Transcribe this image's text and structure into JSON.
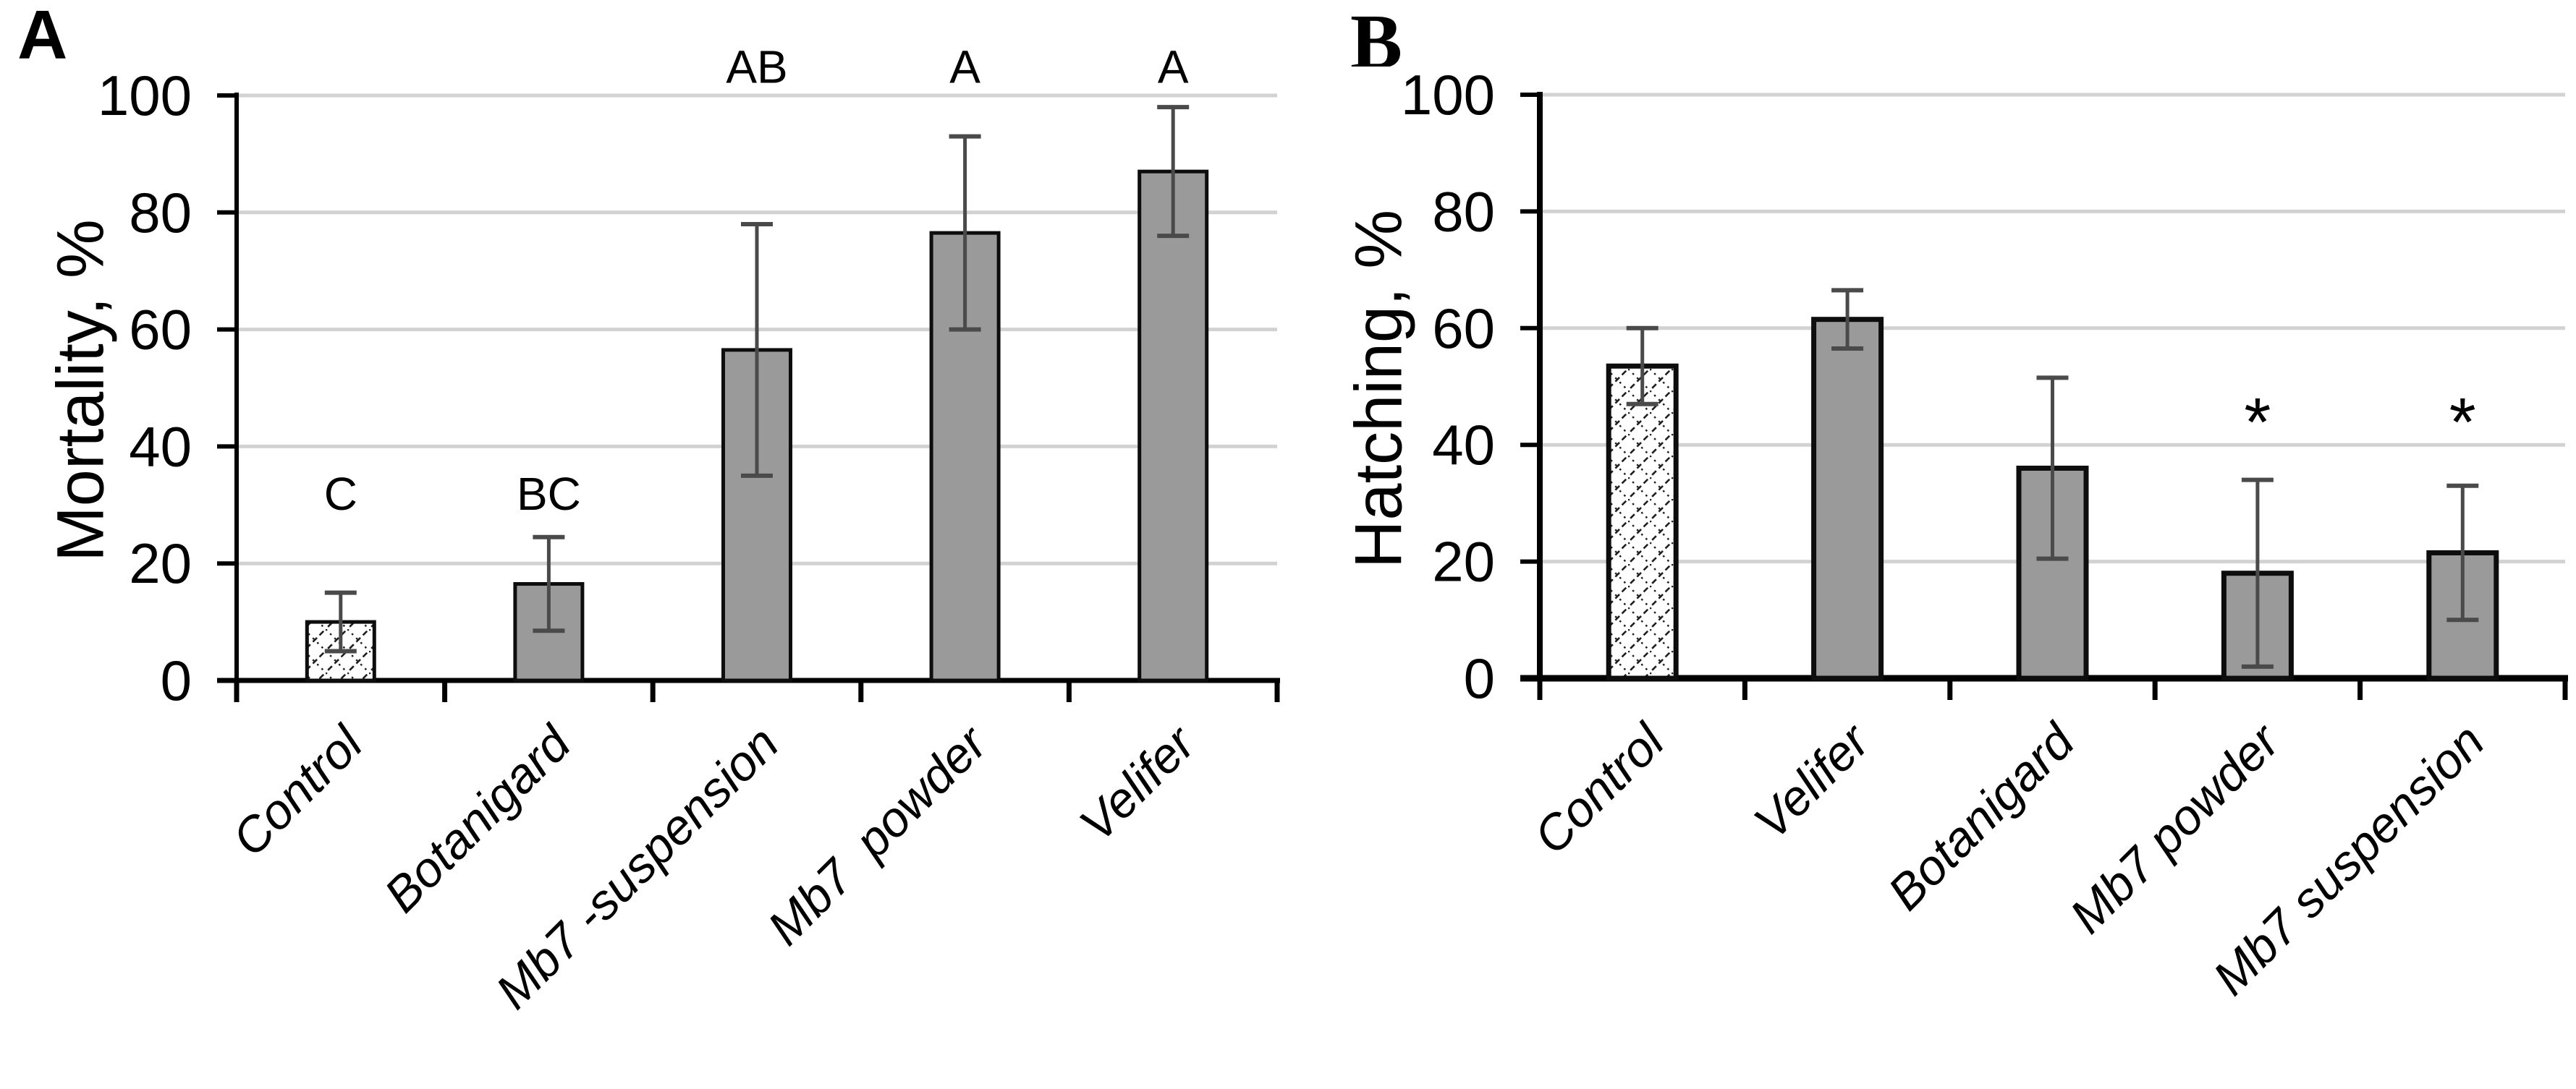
{
  "figure": {
    "background": "#ffffff",
    "panels": [
      {
        "label": "A",
        "ylabel": "Mortality, %"
      },
      {
        "label": "B",
        "ylabel": "Hatching, %"
      }
    ]
  },
  "colors": {
    "bar_fill": "#9a9a9a",
    "bar_border": "#0d0d0d",
    "error_bar": "#4a4a4a",
    "gridline": "#d2d2d2",
    "axis": "#000000",
    "text": "#000000",
    "hatch_background": "#ffffff",
    "hatch_line": "#1f1f1f"
  },
  "chart_data": [
    {
      "type": "bar",
      "panel_label": "A",
      "title": "",
      "xlabel": "",
      "ylabel": "Mortality, %",
      "ylim": [
        0,
        100
      ],
      "yticks": [
        0,
        20,
        40,
        60,
        80,
        100
      ],
      "grid": true,
      "legend": "none",
      "categories": [
        "Control",
        "Botanigard",
        "Mb7 -suspension",
        "Mb7  powder",
        "Velifer"
      ],
      "values": [
        10,
        16.5,
        56.5,
        76.5,
        87
      ],
      "error_bars": [
        5,
        8,
        21.5,
        16.5,
        11
      ],
      "bar_patterns": [
        "hatched",
        "solid",
        "solid",
        "solid",
        "solid"
      ],
      "annotations": [
        {
          "text": "C",
          "y": 32
        },
        {
          "text": "BC",
          "y": 32
        },
        {
          "text": "AB",
          "y": 105
        },
        {
          "text": "A",
          "y": 105
        },
        {
          "text": "A",
          "y": 105
        }
      ]
    },
    {
      "type": "bar",
      "panel_label": "B",
      "title": "",
      "xlabel": "",
      "ylabel": "Hatching, %",
      "ylim": [
        0,
        100
      ],
      "yticks": [
        0,
        20,
        40,
        60,
        80,
        100
      ],
      "grid": true,
      "legend": "none",
      "categories": [
        "Control",
        "Velifer",
        "Botanigard",
        "Mb7 powder",
        "Mb7 suspension"
      ],
      "values": [
        53.5,
        61.5,
        36,
        18,
        21.5
      ],
      "error_bars": [
        6.5,
        5,
        15.5,
        16,
        11.5
      ],
      "bar_patterns": [
        "hatched",
        "solid",
        "solid",
        "solid",
        "solid"
      ],
      "annotations": [
        {
          "text": "",
          "y": 0
        },
        {
          "text": "",
          "y": 0
        },
        {
          "text": "",
          "y": 0
        },
        {
          "text": "*",
          "y": 46
        },
        {
          "text": "*",
          "y": 46
        }
      ]
    }
  ]
}
